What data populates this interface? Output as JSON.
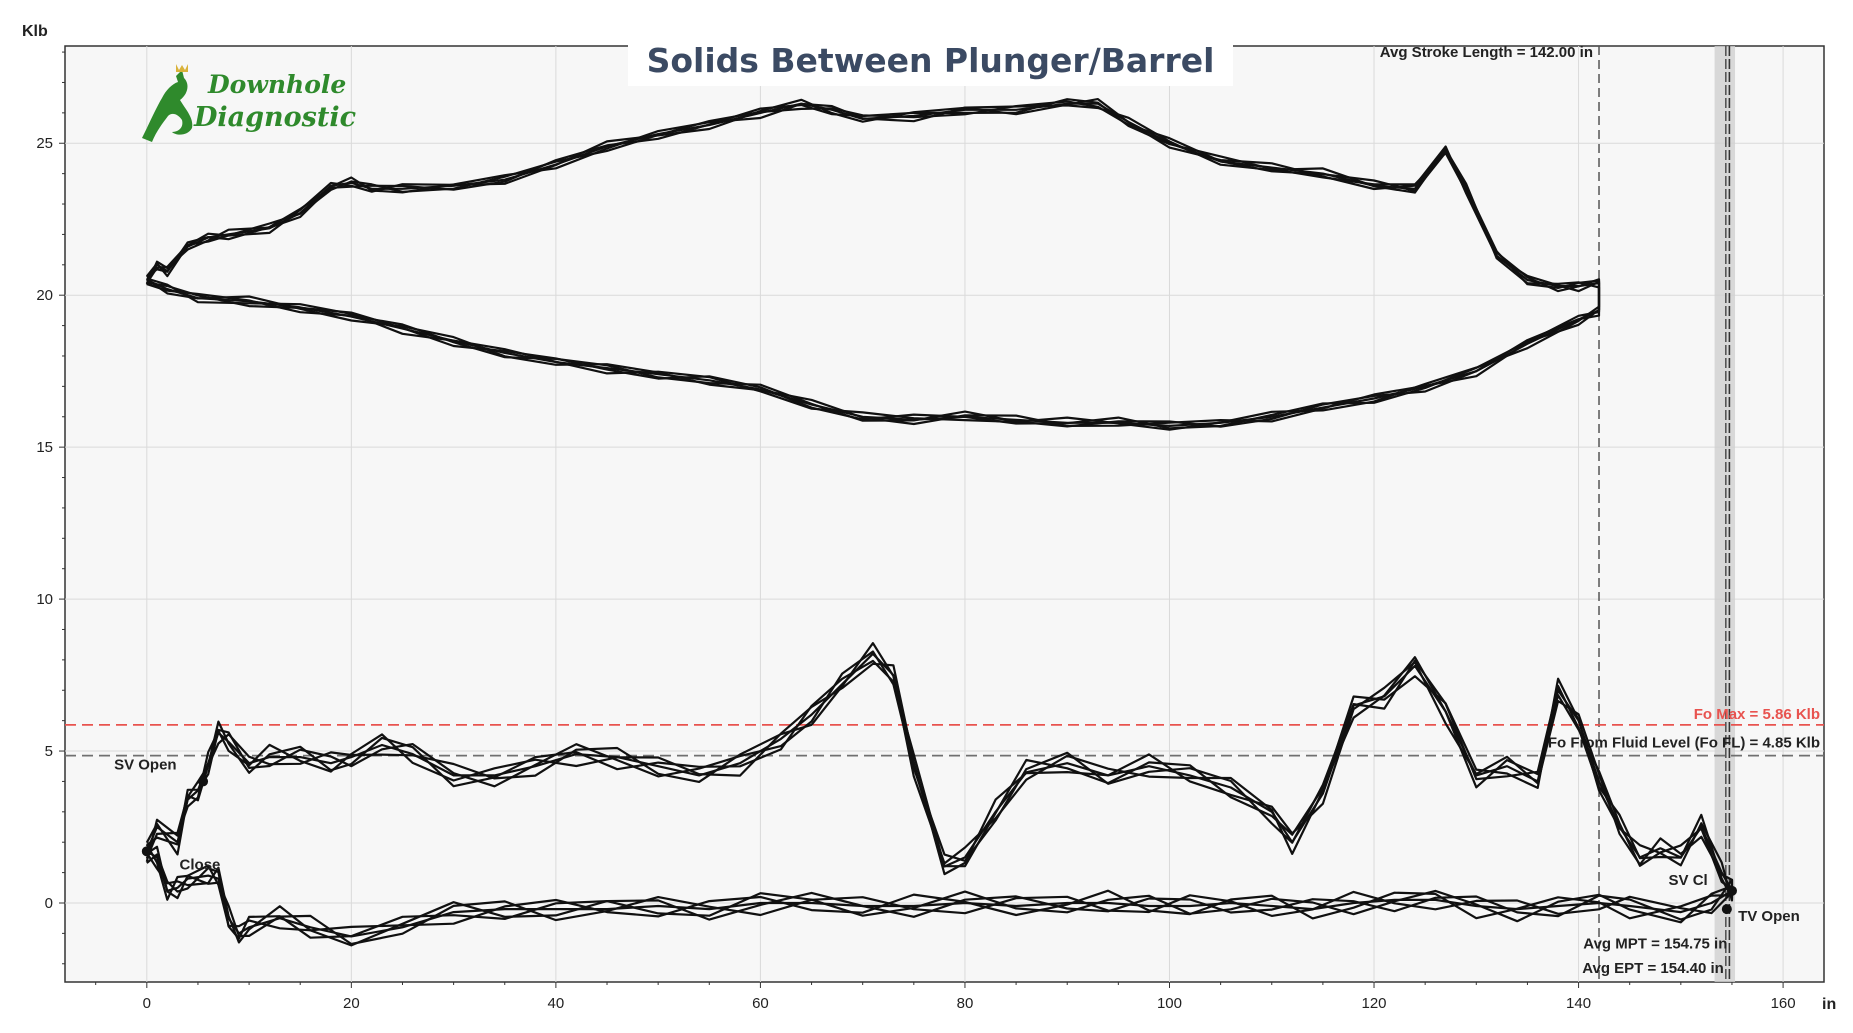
{
  "title": "Solids Between Plunger/Barrel",
  "logo": {
    "line1": "Downhole",
    "line2": "Diagnostic",
    "color": "#2f8a2c"
  },
  "chart_data": {
    "type": "line",
    "ylabel": "Klb",
    "xlabel": "in",
    "xlim": [
      -8,
      164
    ],
    "ylim": [
      -2.6,
      28.2
    ],
    "x_ticks": [
      0,
      20,
      40,
      60,
      80,
      100,
      120,
      140,
      160
    ],
    "y_ticks": [
      0,
      5,
      10,
      15,
      20,
      25
    ],
    "grid": true,
    "surface_card": {
      "upstroke": [
        [
          0,
          20.5
        ],
        [
          1,
          21.0
        ],
        [
          2,
          20.8
        ],
        [
          4,
          21.6
        ],
        [
          6,
          21.9
        ],
        [
          8,
          22.0
        ],
        [
          12,
          22.2
        ],
        [
          15,
          22.7
        ],
        [
          18,
          23.6
        ],
        [
          20,
          23.7
        ],
        [
          22,
          23.5
        ],
        [
          25,
          23.5
        ],
        [
          30,
          23.6
        ],
        [
          35,
          23.8
        ],
        [
          40,
          24.3
        ],
        [
          45,
          24.9
        ],
        [
          50,
          25.3
        ],
        [
          55,
          25.6
        ],
        [
          60,
          26.0
        ],
        [
          64,
          26.3
        ],
        [
          67,
          26.1
        ],
        [
          70,
          25.8
        ],
        [
          75,
          25.9
        ],
        [
          80,
          26.1
        ],
        [
          85,
          26.1
        ],
        [
          90,
          26.3
        ],
        [
          93,
          26.3
        ],
        [
          96,
          25.7
        ],
        [
          100,
          25.0
        ],
        [
          105,
          24.4
        ],
        [
          110,
          24.2
        ],
        [
          115,
          24.0
        ],
        [
          120,
          23.6
        ],
        [
          124,
          23.5
        ],
        [
          127,
          24.8
        ],
        [
          129,
          23.5
        ],
        [
          132,
          21.3
        ],
        [
          135,
          20.5
        ],
        [
          138,
          20.3
        ],
        [
          140,
          20.3
        ],
        [
          142,
          20.4
        ]
      ],
      "downstroke": [
        [
          142,
          19.5
        ],
        [
          140,
          19.2
        ],
        [
          135,
          18.4
        ],
        [
          130,
          17.5
        ],
        [
          125,
          17.0
        ],
        [
          120,
          16.6
        ],
        [
          115,
          16.3
        ],
        [
          110,
          16.0
        ],
        [
          105,
          15.8
        ],
        [
          100,
          15.7
        ],
        [
          95,
          15.8
        ],
        [
          90,
          15.8
        ],
        [
          85,
          15.9
        ],
        [
          80,
          16.0
        ],
        [
          75,
          15.9
        ],
        [
          70,
          16.0
        ],
        [
          65,
          16.4
        ],
        [
          60,
          16.9
        ],
        [
          55,
          17.2
        ],
        [
          50,
          17.4
        ],
        [
          45,
          17.6
        ],
        [
          40,
          17.8
        ],
        [
          35,
          18.1
        ],
        [
          30,
          18.5
        ],
        [
          25,
          18.9
        ],
        [
          20,
          19.3
        ],
        [
          15,
          19.6
        ],
        [
          10,
          19.8
        ],
        [
          5,
          19.9
        ],
        [
          2,
          20.2
        ],
        [
          0,
          20.5
        ]
      ]
    },
    "pump_card": {
      "upstroke": [
        [
          0,
          1.7
        ],
        [
          1,
          2.5
        ],
        [
          3,
          2.0
        ],
        [
          4,
          3.4
        ],
        [
          5,
          3.7
        ],
        [
          6,
          4.6
        ],
        [
          7,
          5.6
        ],
        [
          8,
          5.3
        ],
        [
          10,
          4.6
        ],
        [
          12,
          4.8
        ],
        [
          15,
          4.8
        ],
        [
          18,
          4.6
        ],
        [
          20,
          4.8
        ],
        [
          23,
          5.2
        ],
        [
          26,
          4.9
        ],
        [
          30,
          4.2
        ],
        [
          34,
          4.2
        ],
        [
          38,
          4.5
        ],
        [
          42,
          4.9
        ],
        [
          46,
          4.8
        ],
        [
          50,
          4.5
        ],
        [
          54,
          4.2
        ],
        [
          58,
          4.6
        ],
        [
          62,
          5.4
        ],
        [
          65,
          6.2
        ],
        [
          68,
          7.2
        ],
        [
          71,
          8.2
        ],
        [
          73,
          7.5
        ],
        [
          75,
          4.5
        ],
        [
          78,
          1.2
        ],
        [
          80,
          1.5
        ],
        [
          83,
          3.0
        ],
        [
          86,
          4.3
        ],
        [
          90,
          4.6
        ],
        [
          94,
          4.2
        ],
        [
          98,
          4.5
        ],
        [
          102,
          4.2
        ],
        [
          106,
          3.8
        ],
        [
          110,
          3.0
        ],
        [
          112,
          2.0
        ],
        [
          115,
          3.6
        ],
        [
          118,
          6.5
        ],
        [
          121,
          6.8
        ],
        [
          124,
          7.8
        ],
        [
          127,
          6.3
        ],
        [
          130,
          4.2
        ],
        [
          133,
          4.5
        ],
        [
          136,
          4.0
        ],
        [
          138,
          7.0
        ],
        [
          140,
          6.0
        ],
        [
          142,
          4.0
        ],
        [
          144,
          2.5
        ],
        [
          146,
          1.5
        ],
        [
          148,
          1.8
        ],
        [
          150,
          1.5
        ],
        [
          152,
          2.5
        ],
        [
          154,
          1.0
        ],
        [
          155,
          0.4
        ]
      ],
      "downstroke": [
        [
          155,
          0.4
        ],
        [
          153,
          0.0
        ],
        [
          150,
          -0.3
        ],
        [
          145,
          -0.1
        ],
        [
          142,
          0.0
        ],
        [
          138,
          -0.1
        ],
        [
          134,
          -0.2
        ],
        [
          130,
          -0.1
        ],
        [
          126,
          0.1
        ],
        [
          122,
          0.1
        ],
        [
          118,
          0.0
        ],
        [
          114,
          -0.2
        ],
        [
          110,
          -0.1
        ],
        [
          106,
          0.0
        ],
        [
          102,
          -0.1
        ],
        [
          98,
          -0.1
        ],
        [
          94,
          0.0
        ],
        [
          90,
          0.0
        ],
        [
          85,
          -0.1
        ],
        [
          80,
          0.0
        ],
        [
          75,
          -0.1
        ],
        [
          70,
          -0.1
        ],
        [
          65,
          0.0
        ],
        [
          60,
          0.0
        ],
        [
          55,
          -0.2
        ],
        [
          50,
          -0.1
        ],
        [
          45,
          -0.2
        ],
        [
          40,
          -0.2
        ],
        [
          35,
          -0.2
        ],
        [
          30,
          -0.3
        ],
        [
          25,
          -0.8
        ],
        [
          20,
          -1.1
        ],
        [
          16,
          -0.8
        ],
        [
          13,
          -0.5
        ],
        [
          10,
          -0.8
        ],
        [
          9,
          -1.0
        ],
        [
          8,
          -0.5
        ],
        [
          7,
          0.8
        ],
        [
          6,
          0.9
        ],
        [
          4,
          0.8
        ],
        [
          3,
          0.5
        ],
        [
          2,
          0.4
        ],
        [
          1,
          1.5
        ],
        [
          0,
          1.7
        ]
      ]
    },
    "reference_lines": [
      {
        "label": "Fo Max = 5.86 Klb",
        "y": 5.86,
        "color": "#e8534f"
      },
      {
        "label": "Fo From Fluid Level (Fo FL) = 4.85 Klb",
        "y": 4.85,
        "color": "#707070"
      }
    ],
    "vertical_markers": [
      {
        "label": "Avg Stroke Length = 142.00 in",
        "x": 142.0
      },
      {
        "label": "Avg MPT = 154.75 in",
        "x": 154.75
      },
      {
        "label": "Avg EPT = 154.40 in",
        "x": 154.4
      }
    ],
    "shaded_band": {
      "x0": 153.3,
      "x1": 155.3
    },
    "annotations": [
      {
        "text": "SV Open",
        "x": -3.2,
        "y": 4.4
      },
      {
        "text": "Close",
        "x": 3.2,
        "y": 1.1
      },
      {
        "text": "SV Cl",
        "x": 148.8,
        "y": 0.6
      },
      {
        "text": "TV Open",
        "x": 155.6,
        "y": -0.6
      }
    ]
  }
}
